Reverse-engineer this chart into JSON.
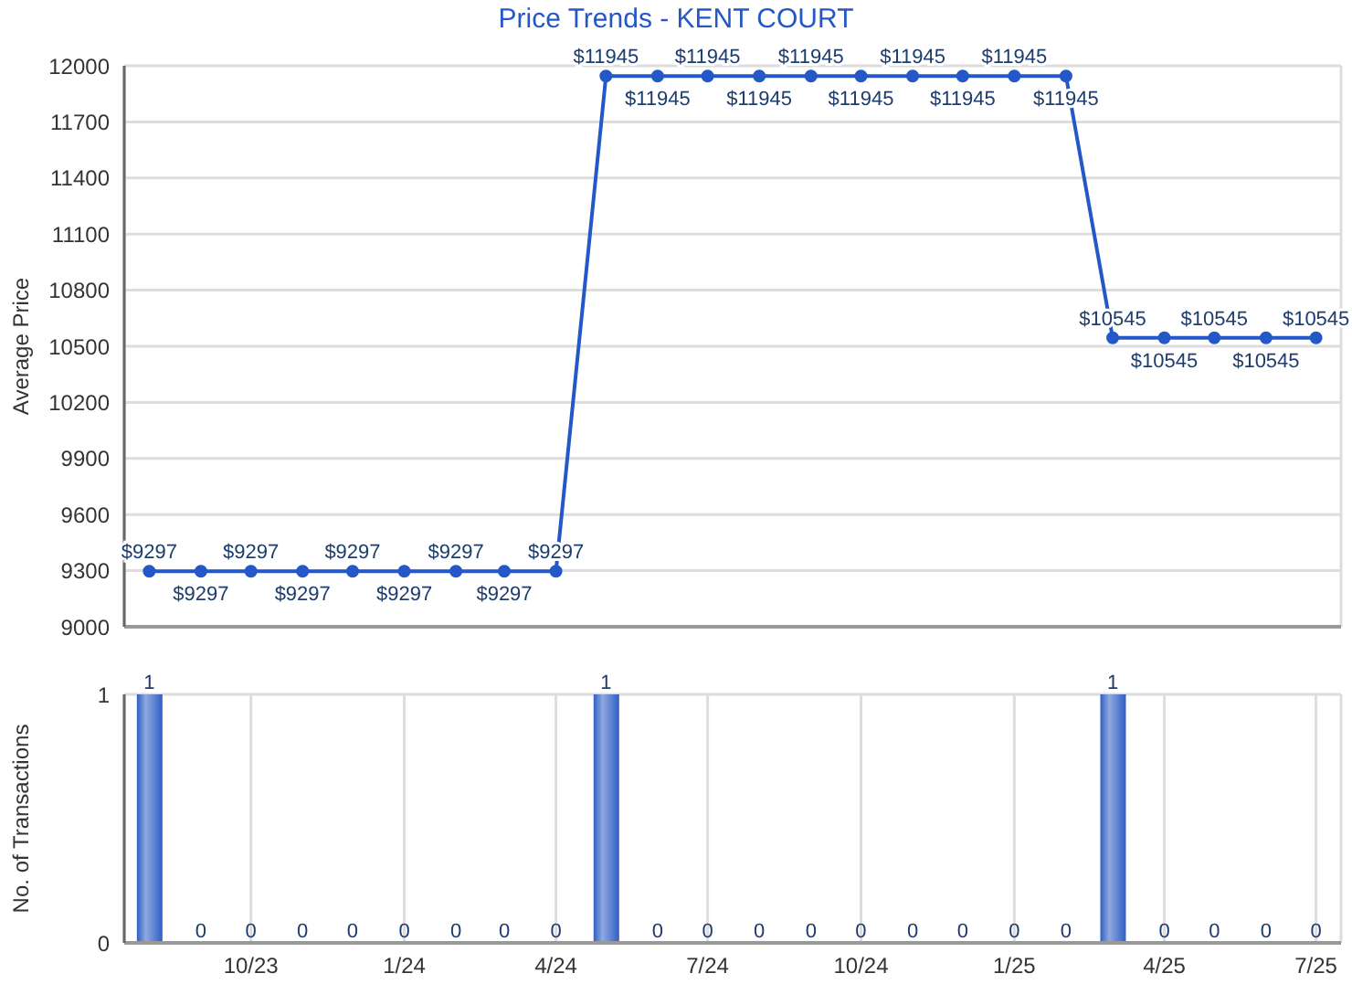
{
  "chart_data": [
    {
      "type": "line",
      "title": "Price Trends - KENT COURT",
      "ylabel": "Average Price",
      "x": [
        "2023-08",
        "2023-09",
        "2023-10",
        "2023-11",
        "2023-12",
        "2024-01",
        "2024-02",
        "2024-03",
        "2024-04",
        "2024-05",
        "2024-06",
        "2024-07",
        "2024-08",
        "2024-09",
        "2024-10",
        "2024-11",
        "2024-12",
        "2025-01",
        "2025-02",
        "2025-03",
        "2025-04",
        "2025-05",
        "2025-06",
        "2025-07"
      ],
      "series": [
        {
          "color": "#2458c8",
          "values": [
            9297,
            9297,
            9297,
            9297,
            9297,
            9297,
            9297,
            9297,
            9297,
            11945,
            11945,
            11945,
            11945,
            11945,
            11945,
            11945,
            11945,
            11945,
            11945,
            10545,
            10545,
            10545,
            10545,
            10545
          ],
          "value_labels": [
            "$9297",
            "$9297",
            "$9297",
            "$9297",
            "$9297",
            "$9297",
            "$9297",
            "$9297",
            "$9297",
            "$11945",
            "$11945",
            "$11945",
            "$11945",
            "$11945",
            "$11945",
            "$11945",
            "$11945",
            "$11945",
            "$11945",
            "$10545",
            "$10545",
            "$10545",
            "$10545",
            "$10545"
          ]
        }
      ],
      "xlim": [
        "2023-07-17",
        "2025-07-16"
      ],
      "xticks": [
        {
          "value": "2023-10",
          "label": null
        },
        {
          "value": "2024-01",
          "label": null
        },
        {
          "value": "2024-04",
          "label": null
        },
        {
          "value": "2024-07",
          "label": null
        },
        {
          "value": "2024-10",
          "label": null
        },
        {
          "value": "2025-01",
          "label": null
        },
        {
          "value": "2025-04",
          "label": null
        },
        {
          "value": "2025-07",
          "label": null
        }
      ],
      "ylim": [
        9000,
        12000
      ],
      "yticks": [
        9000,
        9300,
        9600,
        9900,
        10200,
        10500,
        10800,
        11100,
        11400,
        11700,
        12000
      ],
      "grid": true,
      "marker": "circle",
      "line_style": "solid",
      "tick_labels": "y",
      "legend": false
    },
    {
      "type": "bar",
      "ylabel": "No. of Transactions",
      "x": [
        "2023-08",
        "2023-09",
        "2023-10",
        "2023-11",
        "2023-12",
        "2024-01",
        "2024-02",
        "2024-03",
        "2024-04",
        "2024-05",
        "2024-06",
        "2024-07",
        "2024-08",
        "2024-09",
        "2024-10",
        "2024-11",
        "2024-12",
        "2025-01",
        "2025-02",
        "2025-03",
        "2025-04",
        "2025-05",
        "2025-06",
        "2025-07"
      ],
      "series": [
        {
          "color": "#2f5fc4",
          "values": [
            1,
            0,
            0,
            0,
            0,
            0,
            0,
            0,
            0,
            1,
            0,
            0,
            0,
            0,
            0,
            0,
            0,
            0,
            0,
            1,
            0,
            0,
            0,
            0
          ]
        }
      ],
      "xlim": [
        "2023-07-17",
        "2025-07-16"
      ],
      "xticks": [
        {
          "value": "2023-10",
          "label": "10/23"
        },
        {
          "value": "2024-01",
          "label": "1/24"
        },
        {
          "value": "2024-04",
          "label": "4/24"
        },
        {
          "value": "2024-07",
          "label": "7/24"
        },
        {
          "value": "2024-10",
          "label": "10/24"
        },
        {
          "value": "2025-01",
          "label": "1/25"
        },
        {
          "value": "2025-04",
          "label": "4/25"
        },
        {
          "value": "2025-07",
          "label": "7/25"
        }
      ],
      "ylim": [
        0,
        1
      ],
      "yticks": [
        0,
        1
      ],
      "grid": true,
      "data_labels": true,
      "legend": false
    }
  ]
}
